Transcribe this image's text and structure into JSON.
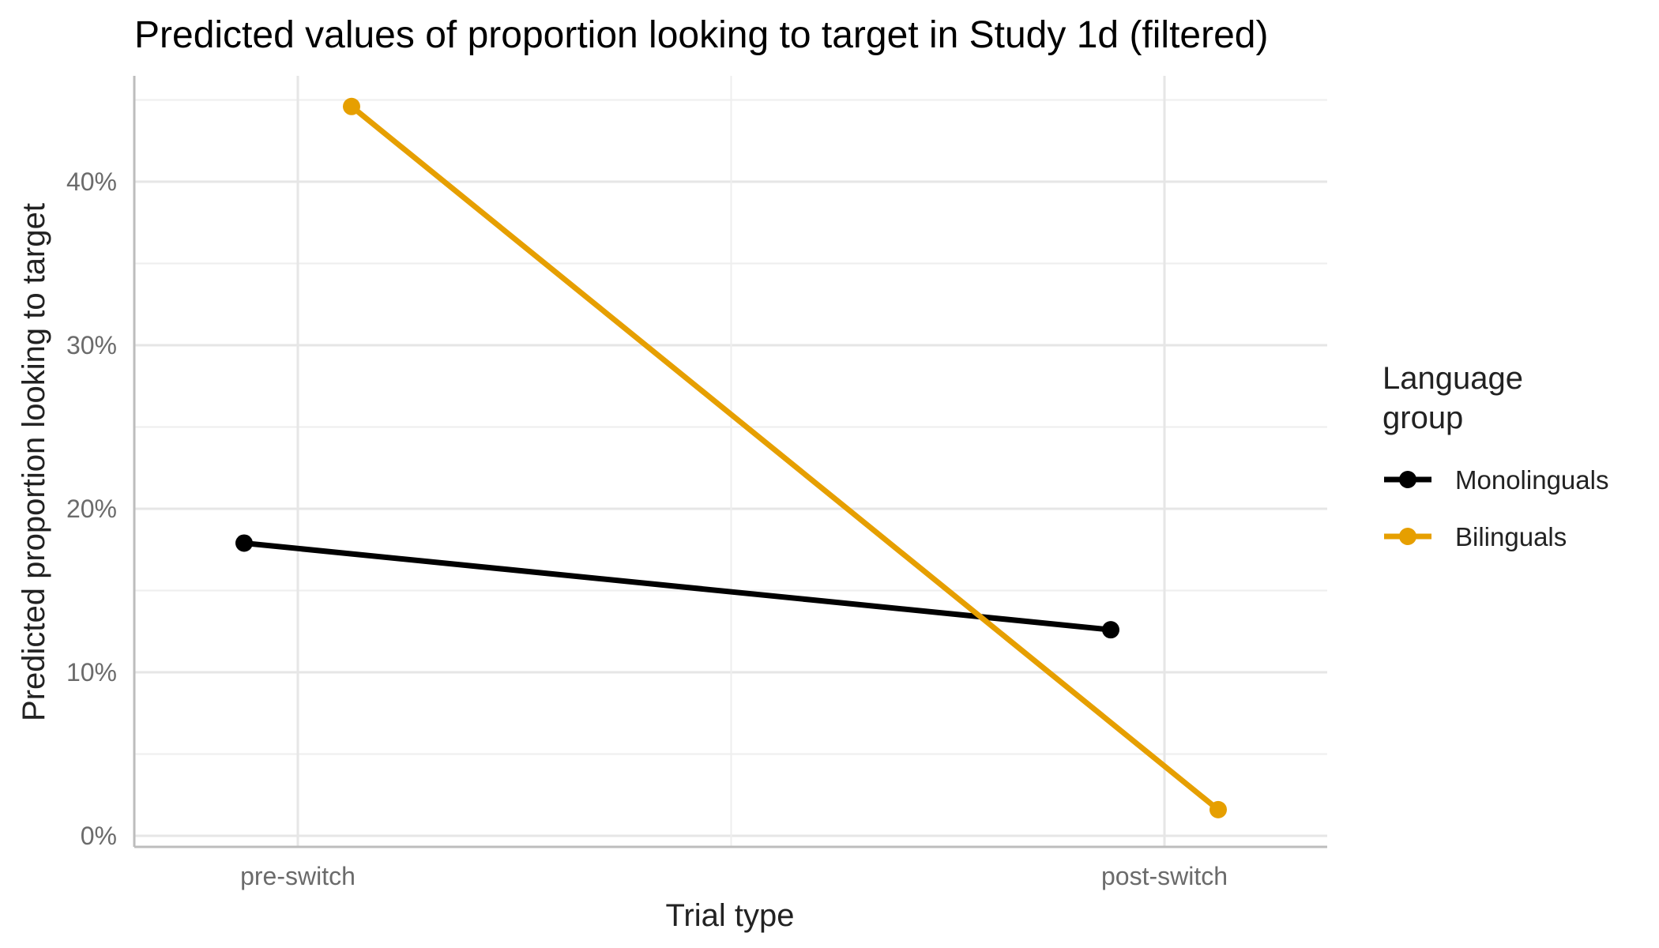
{
  "chart_data": {
    "type": "line",
    "title": "Predicted values of proportion looking to target in Study 1d (filtered)",
    "xlabel": "Trial type",
    "ylabel": "Predicted proportion looking to target",
    "categories": [
      "pre-switch",
      "post-switch"
    ],
    "ylim": [
      0,
      0.47
    ],
    "yticks": [
      0,
      0.1,
      0.2,
      0.3,
      0.4
    ],
    "ytick_labels": [
      "0%",
      "10%",
      "20%",
      "30%",
      "40%"
    ],
    "grid": true,
    "legend": {
      "title_lines": [
        "Language",
        " group"
      ],
      "position": "right"
    },
    "series": [
      {
        "name": "Monolinguals",
        "color": "#000000",
        "values": [
          0.179,
          0.126
        ]
      },
      {
        "name": "Bilinguals",
        "color": "#E69F00",
        "values": [
          0.446,
          0.016
        ]
      }
    ]
  }
}
